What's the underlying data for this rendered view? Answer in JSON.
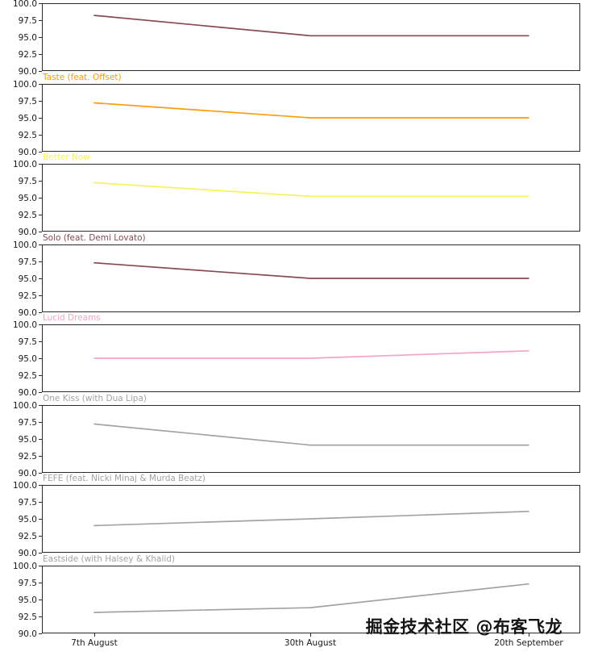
{
  "watermark": "掘金技术社区 @布客飞龙",
  "chart_data": {
    "type": "line",
    "x": [
      "7th August",
      "30th August",
      "20th September"
    ],
    "y_tick_labels": [
      "100.0",
      "97.5",
      "95.0",
      "92.5",
      "90.0"
    ],
    "ylim": [
      90,
      100
    ],
    "grid": false,
    "legend_position": "none",
    "layout": "8 stacked small-multiple subplots, song title above each subplot at left, colored to match its line",
    "charts": [
      {
        "title": "",
        "color": "#874a52",
        "values": [
          98.2,
          95.2,
          95.2
        ]
      },
      {
        "title": "Taste (feat. Offset)",
        "color": "#ff9b05",
        "values": [
          97.2,
          95.0,
          95.0
        ]
      },
      {
        "title": "Better Now",
        "color": "#f7f35e",
        "values": [
          97.2,
          95.2,
          95.2
        ]
      },
      {
        "title": "Solo (feat. Demi Lovato)",
        "color": "#874a52",
        "values": [
          97.3,
          95.0,
          95.0
        ]
      },
      {
        "title": "Lucid Dreams",
        "color": "#f5a3c7",
        "values": [
          95.0,
          95.0,
          96.1
        ]
      },
      {
        "title": "One Kiss (with Dua Lipa)",
        "color": "#a3a3a3",
        "values": [
          97.2,
          94.1,
          94.1
        ]
      },
      {
        "title": "FEFE (feat. Nicki Minaj & Murda Beatz)",
        "color": "#a3a3a3",
        "values": [
          94.0,
          95.0,
          96.1
        ]
      },
      {
        "title": "Eastside (with Halsey & Khalid)",
        "color": "#a3a3a3",
        "values": [
          93.1,
          93.8,
          97.3
        ]
      }
    ]
  }
}
